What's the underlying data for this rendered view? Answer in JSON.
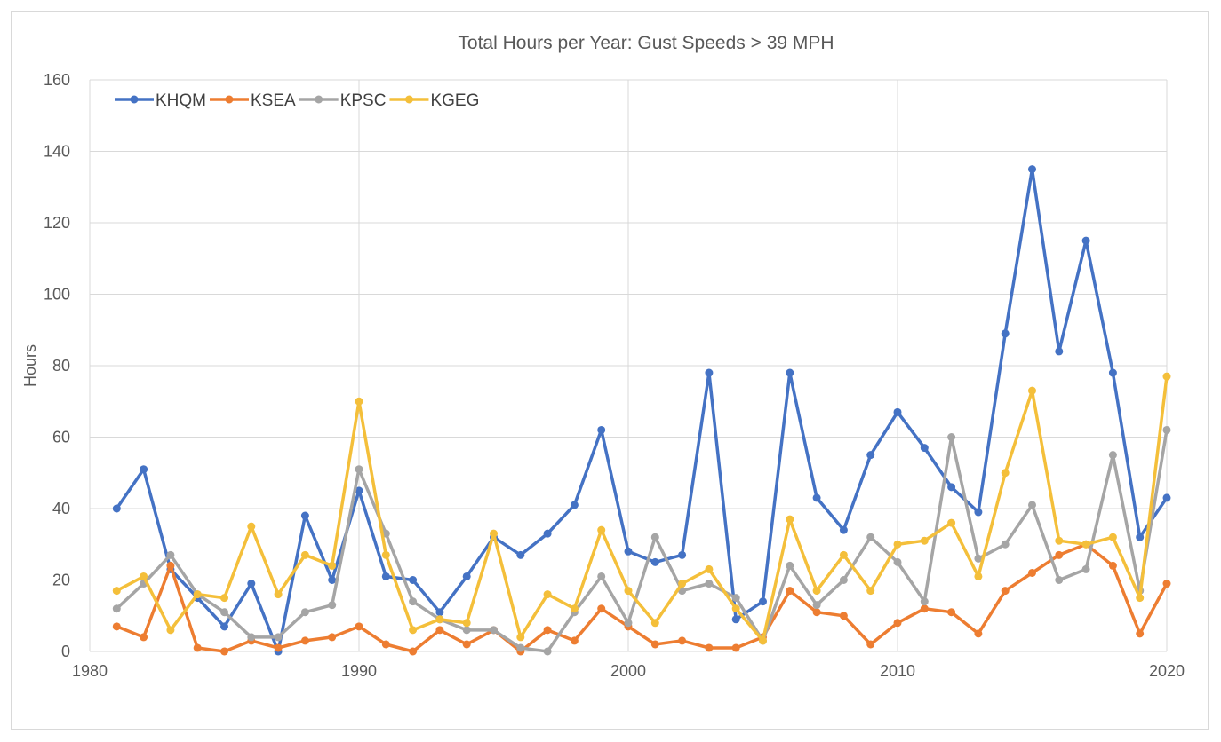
{
  "chart_data": {
    "type": "line",
    "title": "Total Hours per Year: Gust Speeds > 39 MPH",
    "xlabel": "",
    "ylabel": "Hours",
    "xlim": [
      1980,
      2020
    ],
    "ylim": [
      0,
      160
    ],
    "x_ticks": [
      1980,
      1990,
      2000,
      2010,
      2020
    ],
    "y_ticks": [
      0,
      20,
      40,
      60,
      80,
      100,
      120,
      140,
      160
    ],
    "grid": true,
    "legend_position": "top-left",
    "x": [
      1981,
      1982,
      1983,
      1984,
      1985,
      1986,
      1987,
      1988,
      1989,
      1990,
      1991,
      1992,
      1993,
      1994,
      1995,
      1996,
      1997,
      1998,
      1999,
      2000,
      2001,
      2002,
      2003,
      2004,
      2005,
      2006,
      2007,
      2008,
      2009,
      2010,
      2011,
      2012,
      2013,
      2014,
      2015,
      2016,
      2017,
      2018,
      2019,
      2020
    ],
    "series": [
      {
        "name": "KHQM",
        "color": "#4472c4",
        "values": [
          40,
          51,
          23,
          15,
          7,
          19,
          0,
          38,
          20,
          45,
          21,
          20,
          11,
          21,
          32,
          27,
          33,
          41,
          62,
          28,
          25,
          27,
          78,
          9,
          14,
          78,
          43,
          34,
          55,
          67,
          57,
          46,
          39,
          89,
          135,
          84,
          115,
          78,
          32,
          43
        ]
      },
      {
        "name": "KSEA",
        "color": "#ed7d31",
        "values": [
          7,
          4,
          24,
          1,
          0,
          3,
          1,
          3,
          4,
          7,
          2,
          0,
          6,
          2,
          6,
          0,
          6,
          3,
          12,
          7,
          2,
          3,
          1,
          1,
          4,
          17,
          11,
          10,
          2,
          8,
          12,
          11,
          5,
          17,
          22,
          27,
          30,
          24,
          5,
          19
        ]
      },
      {
        "name": "KPSC",
        "color": "#a5a5a5",
        "values": [
          12,
          19,
          27,
          16,
          11,
          4,
          4,
          11,
          13,
          51,
          33,
          14,
          9,
          6,
          6,
          1,
          0,
          11,
          21,
          8,
          32,
          17,
          19,
          15,
          3,
          24,
          13,
          20,
          32,
          25,
          14,
          60,
          26,
          30,
          41,
          20,
          23,
          55,
          17,
          62
        ]
      },
      {
        "name": "KGEG",
        "color": "#f4bf3a",
        "values": [
          17,
          21,
          6,
          16,
          15,
          35,
          16,
          27,
          24,
          70,
          27,
          6,
          9,
          8,
          33,
          4,
          16,
          12,
          34,
          17,
          8,
          19,
          23,
          12,
          3,
          37,
          17,
          27,
          17,
          30,
          31,
          36,
          21,
          50,
          73,
          31,
          30,
          32,
          15,
          77
        ]
      }
    ]
  }
}
